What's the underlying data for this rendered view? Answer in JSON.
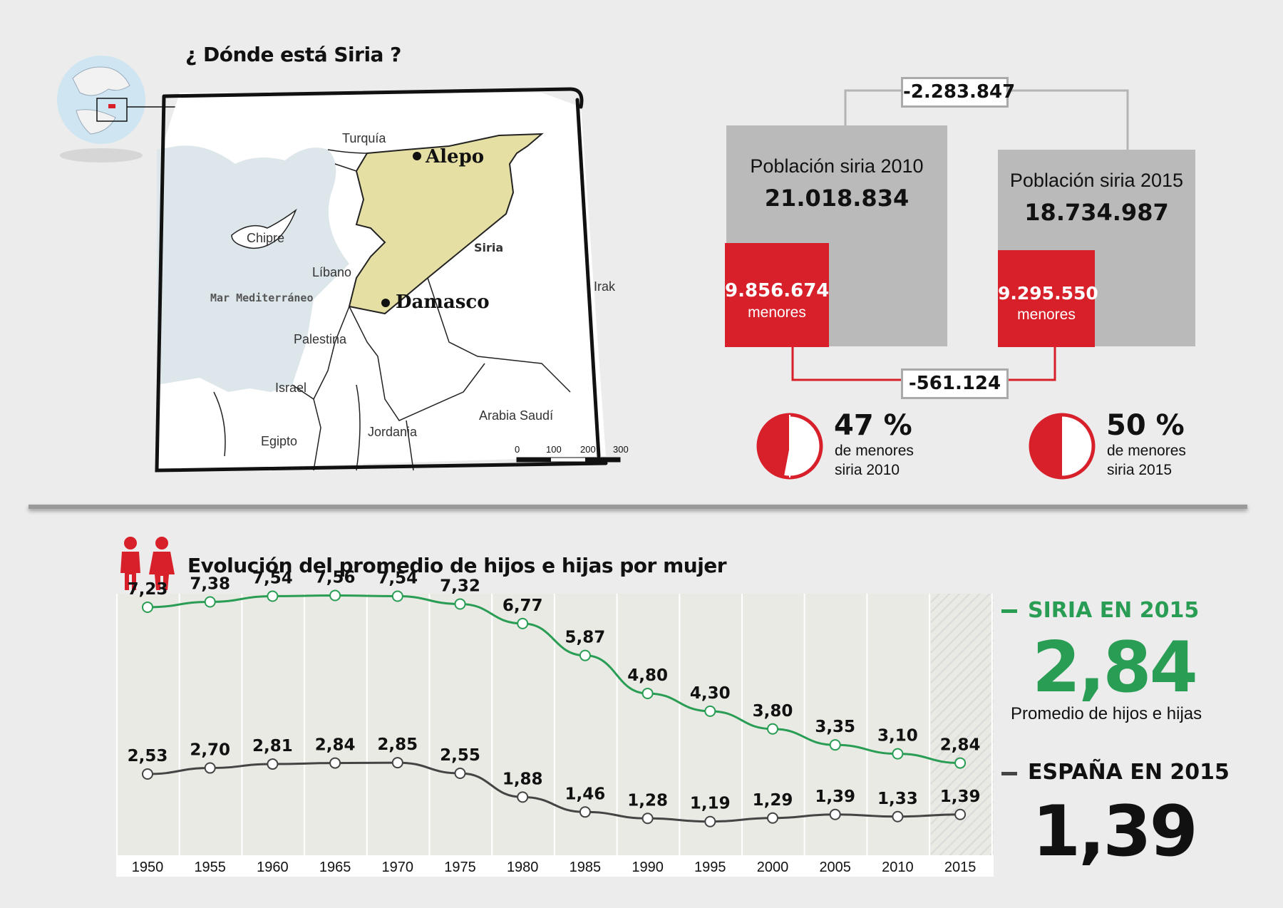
{
  "map_section": {
    "title": "¿ Dónde está Siria ?",
    "labels": {
      "turquia": "Turquía",
      "alepo": "Alepo",
      "chipre": "Chipre",
      "siria": "Siria",
      "libano": "Líbano",
      "mar": "Mar Mediterráneo",
      "damasco": "Damasco",
      "irak": "Irak",
      "palestina": "Palestina",
      "israel": "Israel",
      "arabia": "Arabia Saudí",
      "jordania": "Jordania",
      "egipto": "Egipto"
    },
    "scale_ticks": [
      "0",
      "100",
      "200",
      "300"
    ],
    "colors": {
      "sea": "#dde6ea",
      "syria": "#e6dfa3",
      "land": "#ffffff"
    }
  },
  "population": {
    "diff_total": "-2.283.847",
    "diff_minors": "-561.124",
    "y2010": {
      "label": "Población siria 2010",
      "value": "21.018.834",
      "minors_value": "9.856.674",
      "minors_label": "menores",
      "percent": "47 %",
      "percent_caption_1": "de menores",
      "percent_caption_2": "siria 2010",
      "fraction": 0.47
    },
    "y2015": {
      "label": "Población siria 2015",
      "value": "18.734.987",
      "minors_value": "9.295.550",
      "minors_label": "menores",
      "percent": "50 %",
      "percent_caption_1": "de menores",
      "percent_caption_2": "siria 2015",
      "fraction": 0.5
    },
    "colors": {
      "red": "#d8202b",
      "grey": "#bababa"
    }
  },
  "fertility": {
    "title": "Evolución del promedio de hijos e hijas por mujer",
    "legend": {
      "syria_head": "SIRIA EN 2015",
      "syria_value": "2,84",
      "syria_caption": "Promedio de hijos e hijas",
      "spain_head": "ESPAÑA EN 2015",
      "spain_value": "1,39"
    },
    "colors": {
      "syria": "#2a9d55",
      "spain": "#444444"
    }
  },
  "chart_data": {
    "type": "line",
    "title": "Evolución del promedio de hijos e hijas por mujer",
    "categories": [
      "1950",
      "1955",
      "1960",
      "1965",
      "1970",
      "1975",
      "1980",
      "1985",
      "1990",
      "1995",
      "2000",
      "2005",
      "2010",
      "2015"
    ],
    "series": [
      {
        "name": "SIRIA",
        "values": [
          7.23,
          7.38,
          7.54,
          7.56,
          7.54,
          7.32,
          6.77,
          5.87,
          4.8,
          4.3,
          3.8,
          3.35,
          3.1,
          2.84
        ],
        "labels": [
          "7,23",
          "7,38",
          "7,54",
          "7,56",
          "7,54",
          "7,32",
          "6,77",
          "5,87",
          "4,80",
          "4,30",
          "3,80",
          "3,35",
          "3,10",
          "2,84"
        ]
      },
      {
        "name": "ESPAÑA",
        "values": [
          2.53,
          2.7,
          2.81,
          2.84,
          2.85,
          2.55,
          1.88,
          1.46,
          1.28,
          1.19,
          1.29,
          1.39,
          1.33,
          1.39
        ],
        "labels": [
          "2,53",
          "2,70",
          "2,81",
          "2,84",
          "2,85",
          "2,55",
          "1,88",
          "1,46",
          "1,28",
          "1,19",
          "1,29",
          "1,39",
          "1,33",
          "1,39"
        ]
      }
    ]
  }
}
